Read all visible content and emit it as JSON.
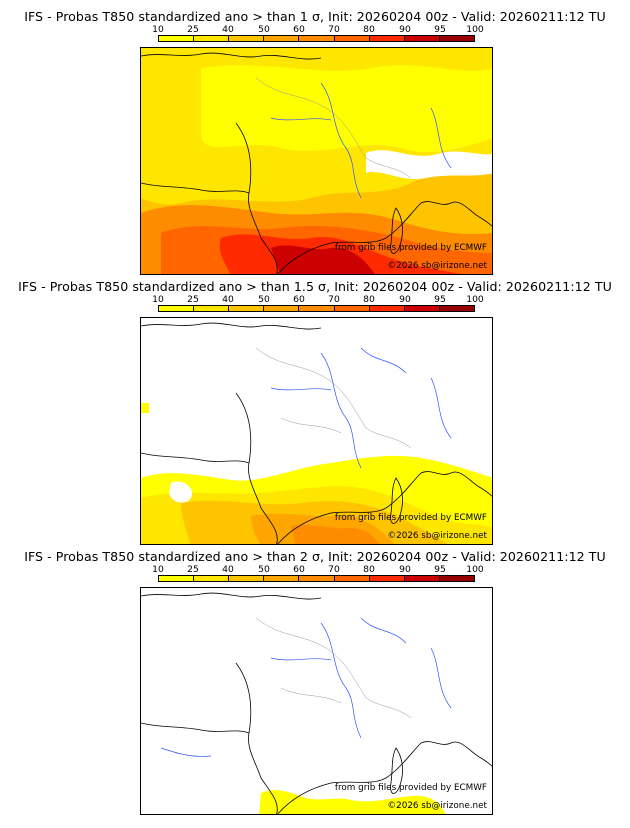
{
  "legend": {
    "ticks": [
      "10",
      "25",
      "40",
      "50",
      "60",
      "70",
      "80",
      "90",
      "95",
      "100"
    ],
    "colors": [
      "#ffff00",
      "#ffe600",
      "#ffc400",
      "#ffa500",
      "#ff8c00",
      "#ff6600",
      "#ff2a00",
      "#cc0000",
      "#990000",
      "#660000"
    ]
  },
  "panels": [
    {
      "title": "IFS - Probas T850  standardized ano > than 1 σ, Init: 20260204 00z - Valid: 20260211:12 TU"
    },
    {
      "title": "IFS - Probas T850  standardized ano > than 1.5 σ, Init: 20260204 00z - Valid: 20260211:12 TU"
    },
    {
      "title": "IFS - Probas T850  standardized ano > than 2 σ, Init: 20260204 00z - Valid: 20260211:12 TU"
    }
  ],
  "credits": {
    "source": "from grib files provided by ECMWF",
    "copyright": "©2026 sb@irizone.net"
  }
}
